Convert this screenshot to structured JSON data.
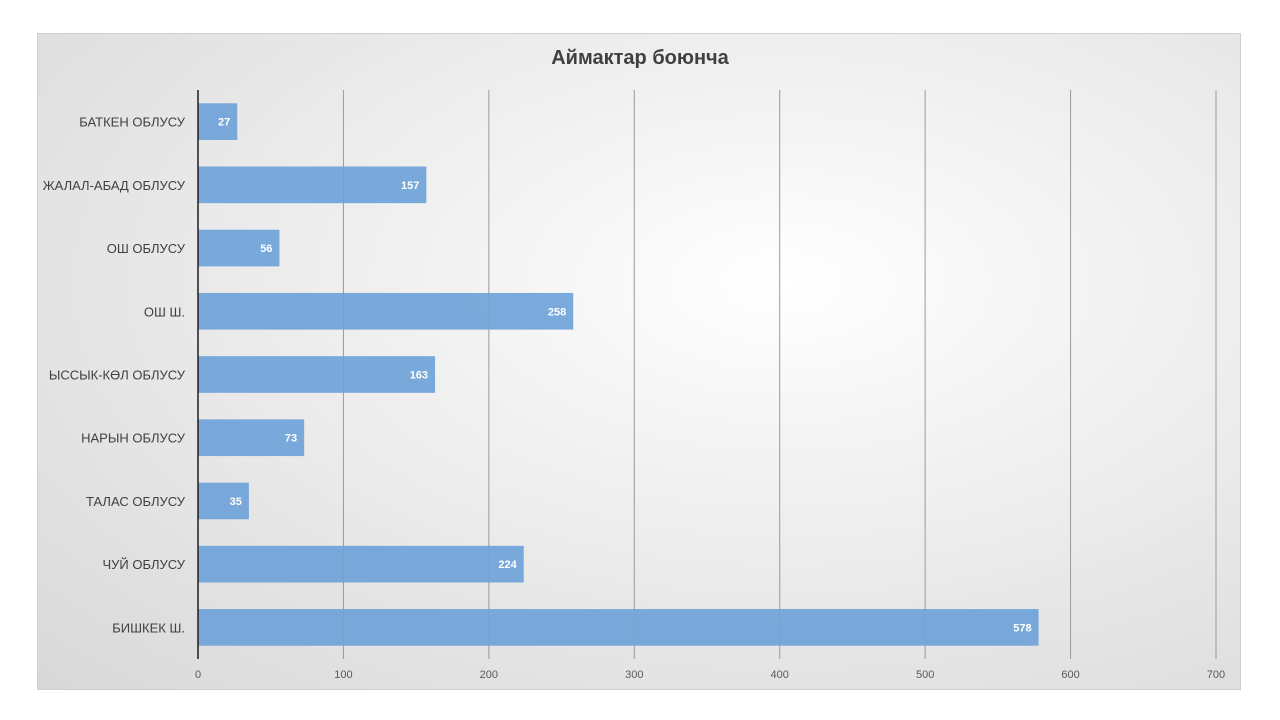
{
  "chart_data": {
    "type": "bar",
    "orientation": "horizontal",
    "title": "Аймактар боюнча",
    "categories": [
      "БАТКЕН ОБЛУСУ",
      "ЖАЛАЛ-АБАД ОБЛУСУ",
      "ОШ ОБЛУСУ",
      "ОШ Ш.",
      "ЫССЫК-КӨЛ ОБЛУСУ",
      "НАРЫН ОБЛУСУ",
      "ТАЛАС ОБЛУСУ",
      "ЧУЙ ОБЛУСУ",
      "БИШКЕК Ш."
    ],
    "values": [
      27,
      157,
      56,
      258,
      163,
      73,
      35,
      224,
      578
    ],
    "xlim": [
      0,
      700
    ],
    "x_ticks": [
      0,
      100,
      200,
      300,
      400,
      500,
      600,
      700
    ],
    "xlabel": "",
    "ylabel": "",
    "grid": true,
    "data_labels": true,
    "legend": "none",
    "bar_color": "#6fa3d8"
  }
}
